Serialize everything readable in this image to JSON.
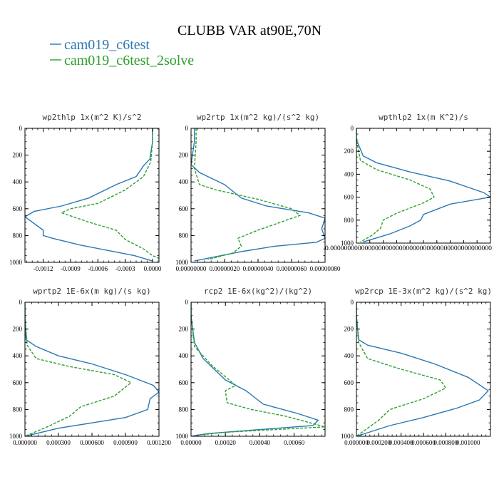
{
  "title": "CLUBB VAR at90E,70N",
  "colors": {
    "series1": "#2a78b4",
    "series2": "#2ca02c"
  },
  "legend": [
    {
      "label": "cam019_c6test",
      "color": "#2a78b4"
    },
    {
      "label": "cam019_c6test_2solve",
      "color": "#2ca02c"
    }
  ],
  "chart_data": [
    {
      "type": "line",
      "title": "wp2thlp  1x(m^2 K)/s^2",
      "xlim": [
        -0.0014,
        7e-05
      ],
      "ylim": [
        0,
        1000
      ],
      "y_inverted": true,
      "xticks": [
        "-0.0012",
        "-0.0009",
        "-0.0006",
        "-0.0003",
        "0.0000"
      ],
      "xtick_values": [
        -0.0012,
        -0.0009,
        -0.0006,
        -0.0003,
        0
      ],
      "yticks": [
        "0",
        "200",
        "400",
        "600",
        "800",
        "1000"
      ],
      "series": [
        {
          "name": "cam019_c6test",
          "x": [
            0,
            0,
            -3e-05,
            -0.0001,
            -0.00018,
            -0.0004,
            -0.0007,
            -0.001,
            -0.0013,
            -0.0014,
            -0.0012,
            -0.0012,
            -0.0011,
            -0.0008,
            -0.0005,
            -0.0002,
            0
          ],
          "y": [
            0,
            100,
            230,
            280,
            360,
            420,
            520,
            580,
            620,
            660,
            760,
            800,
            820,
            870,
            910,
            950,
            990
          ]
        },
        {
          "name": "cam019_c6test_2solve",
          "x": [
            0,
            0,
            -2e-05,
            -0.0001,
            -0.0003,
            -0.0006,
            -0.0009,
            -0.001,
            -0.0007,
            -0.0004,
            -0.0003,
            -0.0001,
            0,
            7e-05
          ],
          "y": [
            0,
            100,
            250,
            360,
            460,
            560,
            600,
            630,
            700,
            760,
            830,
            900,
            950,
            970
          ]
        }
      ]
    },
    {
      "type": "line",
      "title": "wp2rtp  1x(m^2 kg)/(s^2 kg)",
      "xlim": [
        0,
        8e-07
      ],
      "ylim": [
        0,
        1000
      ],
      "y_inverted": true,
      "xticks": [
        "0.00000000",
        "0.00000020",
        "0.00000040",
        "0.00000060",
        "0.00000080"
      ],
      "xtick_values": [
        0,
        2e-07,
        4e-07,
        6e-07,
        8e-07
      ],
      "yticks": [
        "0",
        "200",
        "400",
        "600",
        "800",
        "1000"
      ],
      "series": [
        {
          "name": "cam019_c6test",
          "x": [
            2e-08,
            2e-08,
            0,
            5e-08,
            2e-07,
            3e-07,
            4.5e-07,
            7e-07,
            8e-07,
            7.8e-07,
            8e-07,
            7.5e-07,
            5e-07,
            3e-07,
            2e-08
          ],
          "y": [
            0,
            100,
            270,
            330,
            420,
            520,
            580,
            630,
            670,
            750,
            820,
            850,
            880,
            920,
            990
          ]
        },
        {
          "name": "cam019_c6test_2solve",
          "x": [
            3e-08,
            3e-08,
            2e-08,
            5e-08,
            1.5e-07,
            4e-07,
            6e-07,
            6.5e-07,
            4e-07,
            2.8e-07,
            3e-07,
            2.5e-07,
            1e-07
          ],
          "y": [
            0,
            100,
            300,
            420,
            460,
            530,
            600,
            650,
            760,
            820,
            880,
            930,
            980
          ]
        }
      ]
    },
    {
      "type": "line",
      "title": "wpthlp2  1x(m K^2)/s",
      "xlim": [
        0,
        0.01
      ],
      "ylim": [
        0,
        1000
      ],
      "y_inverted": true,
      "xtick_label_overlapped": "0.00000000000000000000000000000000000000000000000",
      "yticks": [
        "0",
        "200",
        "400",
        "600",
        "800",
        "1000"
      ],
      "series": [
        {
          "name": "cam019_c6test",
          "x": [
            0,
            0,
            0.0005,
            0.0015,
            0.004,
            0.007,
            0.0095,
            0.01,
            0.007,
            0.005,
            0.0048,
            0.004,
            0.0025,
            0.0005
          ],
          "y": [
            0,
            100,
            240,
            300,
            380,
            460,
            560,
            600,
            660,
            750,
            800,
            850,
            920,
            990
          ]
        },
        {
          "name": "cam019_c6test_2solve",
          "x": [
            0,
            0,
            0.0003,
            0.0015,
            0.004,
            0.0055,
            0.0058,
            0.005,
            0.003,
            0.002,
            0.0018,
            0.0012,
            0.0003
          ],
          "y": [
            0,
            100,
            280,
            360,
            450,
            530,
            600,
            650,
            740,
            800,
            870,
            930,
            990
          ]
        }
      ]
    },
    {
      "type": "line",
      "title": "wprtp2  1E-6x(m kg)/(s kg)",
      "xlim": [
        0,
        0.0012
      ],
      "ylim": [
        0,
        1000
      ],
      "y_inverted": true,
      "xticks": [
        "0.000000",
        "0.000300",
        "0.000600",
        "0.000900",
        "0.001200"
      ],
      "xtick_values": [
        0,
        0.0003,
        0.0006,
        0.0009,
        0.0012
      ],
      "yticks": [
        "0",
        "200",
        "400",
        "600",
        "800",
        "1000"
      ],
      "series": [
        {
          "name": "cam019_c6test",
          "x": [
            0,
            0,
            1e-05,
            0.0001,
            0.0003,
            0.0006,
            0.0009,
            0.00115,
            0.0012,
            0.00112,
            0.0011,
            0.0009,
            0.0006,
            0.0003,
            0
          ],
          "y": [
            0,
            100,
            280,
            330,
            400,
            460,
            540,
            620,
            670,
            720,
            800,
            860,
            900,
            940,
            1000
          ]
        },
        {
          "name": "cam019_c6test_2solve",
          "x": [
            0,
            0,
            2e-05,
            0.0001,
            0.0004,
            0.0008,
            0.00095,
            0.0008,
            0.0005,
            0.0004,
            0.0002,
            0
          ],
          "y": [
            0,
            100,
            320,
            420,
            480,
            540,
            600,
            700,
            780,
            850,
            930,
            1000
          ]
        }
      ]
    },
    {
      "type": "line",
      "title": "rcp2  1E-6x(kg^2)/(kg^2)",
      "xlim": [
        0,
        0.00078
      ],
      "ylim": [
        0,
        1000
      ],
      "y_inverted": true,
      "xticks": [
        "0.00000",
        "0.00020",
        "0.00040",
        "0.00060"
      ],
      "xtick_values": [
        0,
        0.0002,
        0.0004,
        0.0006
      ],
      "yticks": [
        "0",
        "200",
        "400",
        "600",
        "800",
        "1000"
      ],
      "series": [
        {
          "name": "cam019_c6test",
          "x": [
            0,
            0,
            2e-05,
            7e-05,
            0.0002,
            0.00032,
            0.00042,
            0.00062,
            0.00074,
            0.00071,
            0.0004,
            0.0001,
            0
          ],
          "y": [
            0,
            100,
            300,
            420,
            580,
            660,
            760,
            830,
            880,
            920,
            950,
            980,
            1000
          ]
        },
        {
          "name": "cam019_c6test_2solve",
          "x": [
            0,
            0,
            2e-05,
            0.00012,
            0.00026,
            0.0002,
            0.00021,
            0.00035,
            0.00055,
            0.00078,
            0.0002,
            5e-05
          ],
          "y": [
            0,
            100,
            330,
            470,
            620,
            660,
            750,
            800,
            850,
            930,
            970,
            990
          ]
        }
      ]
    },
    {
      "type": "line",
      "title": "wp2rcp  1E-3x(m^2 kg)/(s^2 kg)",
      "xlim": [
        0,
        0.0012
      ],
      "ylim": [
        0,
        1000
      ],
      "y_inverted": true,
      "xticks": [
        "0.000000",
        "0.000200",
        "0.000400",
        "0.000600",
        "0.000800",
        "0.001000"
      ],
      "xtick_values": [
        0,
        0.0002,
        0.0004,
        0.0006,
        0.0008,
        0.001
      ],
      "yticks": [
        "0",
        "200",
        "400",
        "600",
        "800",
        "1000"
      ],
      "series": [
        {
          "name": "cam019_c6test",
          "x": [
            0,
            0,
            2e-05,
            0.0001,
            0.0004,
            0.0007,
            0.001,
            0.00118,
            0.0011,
            0.0009,
            0.0006,
            0.0003,
            0
          ],
          "y": [
            0,
            100,
            280,
            320,
            380,
            460,
            560,
            660,
            730,
            790,
            860,
            920,
            1000
          ]
        },
        {
          "name": "cam019_c6test_2solve",
          "x": [
            0,
            0,
            2e-05,
            0.0001,
            0.0004,
            0.00075,
            0.0008,
            0.0006,
            0.0003,
            0.0002,
            0
          ],
          "y": [
            0,
            100,
            300,
            420,
            500,
            580,
            640,
            720,
            800,
            880,
            1000
          ]
        }
      ]
    }
  ]
}
